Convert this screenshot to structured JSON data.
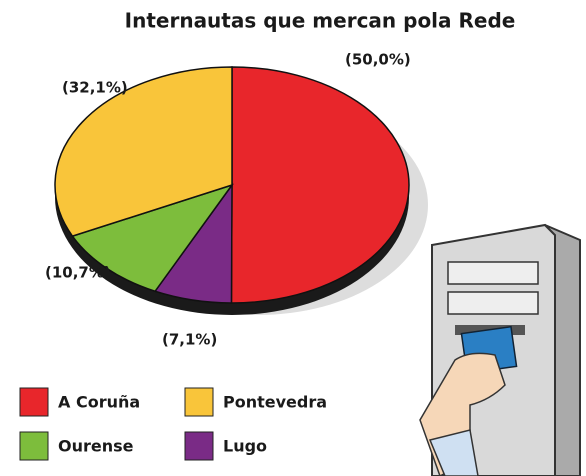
{
  "chart_data": {
    "type": "pie",
    "title": "Internautas que mercan pola Rede",
    "categories": [
      "A Coruña",
      "Pontevedra",
      "Ourense",
      "Lugo"
    ],
    "values": [
      50.0,
      32.1,
      10.7,
      7.1
    ],
    "value_labels": [
      "(50,0%)",
      "(32,1%)",
      "(10,7%)",
      "(7,1%)"
    ],
    "colors": [
      "#e8262b",
      "#f9c53a",
      "#7dbd3c",
      "#7a2b86"
    ]
  }
}
